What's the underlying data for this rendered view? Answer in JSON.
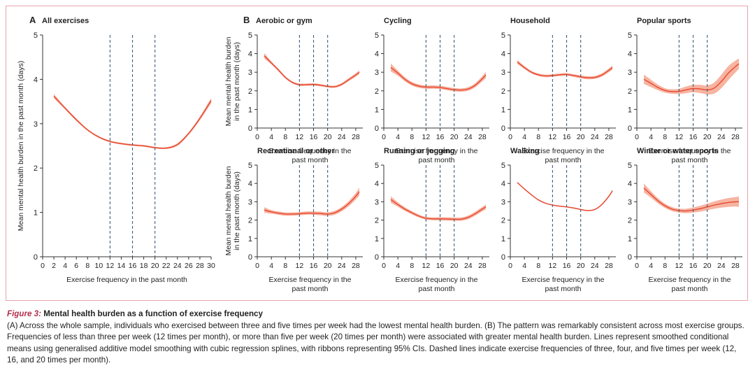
{
  "colors": {
    "line": "#e8462f",
    "ribbon": "#f6b4a1",
    "dashed": "#3f5f7a",
    "border": "#e8a3b0",
    "caption_label": "#b0304a"
  },
  "caption": {
    "figure_label": "Figure 3:",
    "title": "Mental health burden as a function of exercise frequency",
    "body": "(A) Across the whole sample, individuals who exercised between three and five times per week had the lowest mental health burden. (B) The pattern was remarkably consistent across most exercise groups. Frequencies of less than three per week (12 times per month), or more than five per week (20 times per month) were associated with greater mental health burden. Lines represent smoothed conditional means using generalised additive model smoothing with cubic regression splines, with ribbons representing 95% CIs. Dashed lines indicate exercise frequencies of three, four, and five times per week (12, 16, and 20 times per month)."
  },
  "chart_data": [
    {
      "type": "line",
      "panel_letter": "A",
      "title": "All exercises",
      "xlabel": "Exercise frequency in the past month",
      "ylabel": "Mean mental health burden in the past month (days)",
      "xlim": [
        0,
        30
      ],
      "ylim": [
        0,
        5
      ],
      "xticks": [
        "0",
        "2",
        "4",
        "6",
        "8",
        "10",
        "12",
        "14",
        "16",
        "18",
        "20",
        "22",
        "24",
        "26",
        "28",
        "30"
      ],
      "yticks": [
        "0",
        "1",
        "2",
        "3",
        "4",
        "5"
      ],
      "vlines": [
        12,
        16,
        20
      ],
      "series": [
        {
          "x": [
            2,
            4,
            6,
            8,
            10,
            12,
            14,
            16,
            18,
            20,
            22,
            24,
            26,
            28,
            30
          ],
          "y": [
            3.62,
            3.35,
            3.09,
            2.86,
            2.7,
            2.6,
            2.55,
            2.52,
            2.5,
            2.46,
            2.45,
            2.53,
            2.78,
            3.12,
            3.52
          ],
          "ci": [
            0.05,
            0.03,
            0.03,
            0.02,
            0.02,
            0.02,
            0.02,
            0.02,
            0.02,
            0.02,
            0.02,
            0.03,
            0.03,
            0.04,
            0.06
          ]
        }
      ]
    },
    {
      "type": "line",
      "panel_letter": "B",
      "title": "Aerobic or gym",
      "xlabel": "Exercise frequency in the past month",
      "ylabel": "Mean mental health burden in the past month (days)",
      "xlim": [
        0,
        30
      ],
      "ylim": [
        0,
        5
      ],
      "xticks": [
        "0",
        "4",
        "8",
        "12",
        "16",
        "20",
        "24",
        "28"
      ],
      "yticks": [
        "0",
        "1",
        "2",
        "3",
        "4",
        "5"
      ],
      "vlines": [
        12,
        16,
        20
      ],
      "series": [
        {
          "x": [
            2,
            4,
            6,
            8,
            10,
            12,
            14,
            16,
            18,
            20,
            22,
            24,
            26,
            28,
            29
          ],
          "y": [
            3.88,
            3.5,
            3.12,
            2.72,
            2.45,
            2.33,
            2.33,
            2.34,
            2.3,
            2.24,
            2.22,
            2.35,
            2.6,
            2.85,
            3.0
          ],
          "ci": [
            0.15,
            0.08,
            0.07,
            0.06,
            0.06,
            0.06,
            0.06,
            0.06,
            0.06,
            0.06,
            0.06,
            0.07,
            0.08,
            0.09,
            0.1
          ]
        }
      ]
    },
    {
      "type": "line",
      "title": "Cycling",
      "xlabel": "Exercise frequency in the past month",
      "xlim": [
        0,
        30
      ],
      "ylim": [
        0,
        5
      ],
      "xticks": [
        "0",
        "4",
        "8",
        "12",
        "16",
        "20",
        "24",
        "28"
      ],
      "yticks": [
        "0",
        "1",
        "2",
        "3",
        "4",
        "5"
      ],
      "vlines": [
        12,
        16,
        20
      ],
      "series": [
        {
          "x": [
            2,
            4,
            6,
            8,
            10,
            12,
            14,
            16,
            18,
            20,
            22,
            24,
            26,
            28,
            29
          ],
          "y": [
            3.25,
            2.95,
            2.62,
            2.38,
            2.25,
            2.2,
            2.2,
            2.18,
            2.12,
            2.06,
            2.04,
            2.1,
            2.3,
            2.65,
            2.85
          ],
          "ci": [
            0.22,
            0.14,
            0.11,
            0.1,
            0.09,
            0.09,
            0.09,
            0.09,
            0.09,
            0.09,
            0.09,
            0.1,
            0.11,
            0.14,
            0.18
          ]
        }
      ]
    },
    {
      "type": "line",
      "title": "Household",
      "xlabel": "Exercise frequency in the past month",
      "xlim": [
        0,
        30
      ],
      "ylim": [
        0,
        5
      ],
      "xticks": [
        "0",
        "4",
        "8",
        "12",
        "16",
        "20",
        "24",
        "28"
      ],
      "yticks": [
        "0",
        "1",
        "2",
        "3",
        "4",
        "5"
      ],
      "vlines": [
        12,
        16,
        20
      ],
      "series": [
        {
          "x": [
            2,
            4,
            6,
            8,
            10,
            12,
            14,
            16,
            18,
            20,
            22,
            24,
            26,
            28,
            29
          ],
          "y": [
            3.55,
            3.25,
            3.0,
            2.86,
            2.8,
            2.82,
            2.86,
            2.88,
            2.82,
            2.75,
            2.7,
            2.72,
            2.85,
            3.1,
            3.25
          ],
          "ci": [
            0.1,
            0.08,
            0.07,
            0.07,
            0.07,
            0.07,
            0.07,
            0.07,
            0.07,
            0.08,
            0.08,
            0.08,
            0.09,
            0.1,
            0.12
          ]
        }
      ]
    },
    {
      "type": "line",
      "title": "Popular sports",
      "xlabel": "Exercise frequency in the past month",
      "xlim": [
        0,
        30
      ],
      "ylim": [
        0,
        5
      ],
      "xticks": [
        "0",
        "4",
        "8",
        "12",
        "16",
        "20",
        "24",
        "28"
      ],
      "yticks": [
        "0",
        "1",
        "2",
        "3",
        "4",
        "5"
      ],
      "vlines": [
        12,
        16,
        20
      ],
      "series": [
        {
          "x": [
            2,
            4,
            6,
            8,
            10,
            12,
            14,
            16,
            18,
            20,
            22,
            24,
            26,
            28,
            29
          ],
          "y": [
            2.62,
            2.4,
            2.18,
            2.02,
            1.96,
            1.97,
            2.05,
            2.12,
            2.1,
            2.05,
            2.15,
            2.5,
            2.95,
            3.3,
            3.45
          ],
          "ci": [
            0.25,
            0.2,
            0.15,
            0.12,
            0.12,
            0.14,
            0.18,
            0.2,
            0.22,
            0.24,
            0.3,
            0.36,
            0.38,
            0.32,
            0.28
          ]
        }
      ]
    },
    {
      "type": "line",
      "title": "Recreational or other",
      "xlabel": "Exercise frequency in the past month",
      "ylabel": "Mean mental health burden in the past month (days)",
      "xlim": [
        0,
        30
      ],
      "ylim": [
        0,
        5
      ],
      "xticks": [
        "0",
        "4",
        "8",
        "12",
        "16",
        "20",
        "24",
        "28"
      ],
      "yticks": [
        "0",
        "1",
        "2",
        "3",
        "4",
        "5"
      ],
      "vlines": [
        12,
        16,
        20
      ],
      "series": [
        {
          "x": [
            2,
            4,
            6,
            8,
            10,
            12,
            14,
            16,
            18,
            20,
            22,
            24,
            26,
            28,
            29
          ],
          "y": [
            2.55,
            2.45,
            2.38,
            2.33,
            2.33,
            2.35,
            2.38,
            2.38,
            2.36,
            2.33,
            2.4,
            2.6,
            2.9,
            3.3,
            3.55
          ],
          "ci": [
            0.15,
            0.1,
            0.09,
            0.09,
            0.09,
            0.09,
            0.09,
            0.09,
            0.1,
            0.1,
            0.11,
            0.12,
            0.14,
            0.18,
            0.22
          ]
        }
      ]
    },
    {
      "type": "line",
      "title": "Running or jogging",
      "xlabel": "Exercise frequency in the past month",
      "xlim": [
        0,
        30
      ],
      "ylim": [
        0,
        5
      ],
      "xticks": [
        "0",
        "4",
        "8",
        "12",
        "16",
        "20",
        "24",
        "28"
      ],
      "yticks": [
        "0",
        "1",
        "2",
        "3",
        "4",
        "5"
      ],
      "vlines": [
        12,
        16,
        20
      ],
      "series": [
        {
          "x": [
            2,
            4,
            6,
            8,
            10,
            12,
            14,
            16,
            18,
            20,
            22,
            24,
            26,
            28,
            29
          ],
          "y": [
            3.12,
            2.85,
            2.6,
            2.4,
            2.22,
            2.1,
            2.07,
            2.07,
            2.06,
            2.05,
            2.05,
            2.15,
            2.35,
            2.6,
            2.72
          ],
          "ci": [
            0.18,
            0.12,
            0.1,
            0.09,
            0.08,
            0.08,
            0.08,
            0.09,
            0.09,
            0.09,
            0.09,
            0.1,
            0.11,
            0.12,
            0.14
          ]
        }
      ]
    },
    {
      "type": "line",
      "title": "Walking",
      "xlabel": "Exercise frequency in the past month",
      "xlim": [
        0,
        30
      ],
      "ylim": [
        0,
        5
      ],
      "xticks": [
        "0",
        "4",
        "8",
        "12",
        "16",
        "20",
        "24",
        "28"
      ],
      "yticks": [
        "0",
        "1",
        "2",
        "3",
        "4",
        "5"
      ],
      "vlines": [
        12,
        16,
        20
      ],
      "series": [
        {
          "x": [
            2,
            4,
            6,
            8,
            10,
            12,
            14,
            16,
            18,
            20,
            22,
            24,
            26,
            28,
            29
          ],
          "y": [
            4.05,
            3.7,
            3.38,
            3.1,
            2.92,
            2.82,
            2.76,
            2.72,
            2.66,
            2.58,
            2.52,
            2.58,
            2.85,
            3.3,
            3.6
          ],
          "ci": [
            0.04,
            0.03,
            0.03,
            0.03,
            0.03,
            0.03,
            0.03,
            0.03,
            0.03,
            0.03,
            0.03,
            0.03,
            0.04,
            0.05,
            0.06
          ]
        }
      ]
    },
    {
      "type": "line",
      "title": "Winter or water sports",
      "xlabel": "Exercise frequency in the past month",
      "xlim": [
        0,
        30
      ],
      "ylim": [
        0,
        5
      ],
      "xticks": [
        "0",
        "4",
        "8",
        "12",
        "16",
        "20",
        "24",
        "28"
      ],
      "yticks": [
        "0",
        "1",
        "2",
        "3",
        "4",
        "5"
      ],
      "vlines": [
        12,
        16,
        20
      ],
      "series": [
        {
          "x": [
            2,
            4,
            6,
            8,
            10,
            12,
            14,
            16,
            18,
            20,
            22,
            24,
            26,
            28,
            29
          ],
          "y": [
            3.75,
            3.4,
            3.05,
            2.78,
            2.6,
            2.52,
            2.5,
            2.55,
            2.62,
            2.72,
            2.82,
            2.9,
            2.96,
            3.0,
            3.0
          ],
          "ci": [
            0.25,
            0.18,
            0.14,
            0.12,
            0.11,
            0.11,
            0.12,
            0.14,
            0.16,
            0.18,
            0.2,
            0.22,
            0.24,
            0.26,
            0.28
          ]
        }
      ]
    }
  ]
}
